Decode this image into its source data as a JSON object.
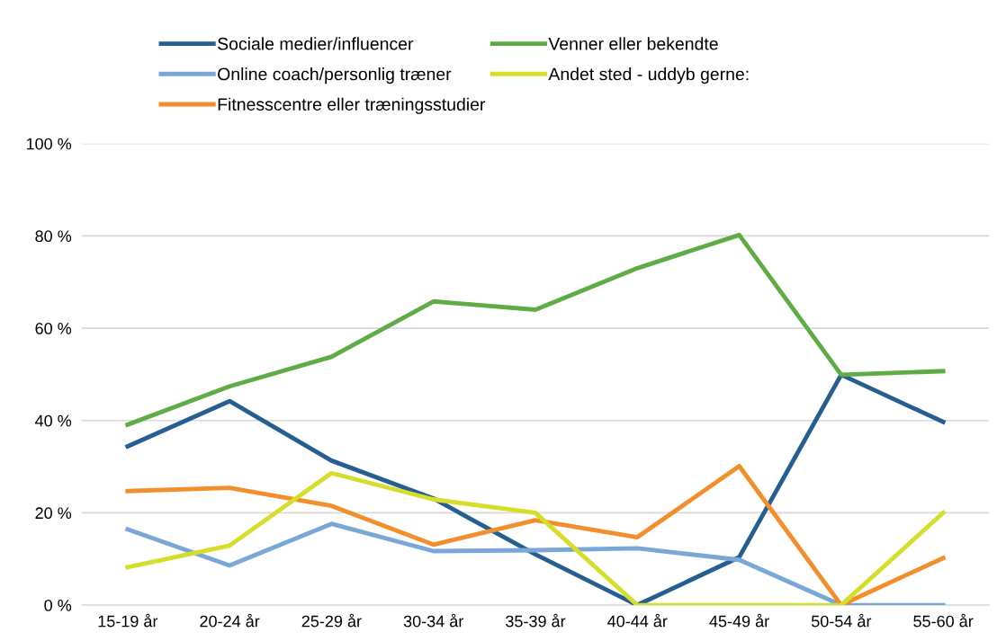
{
  "chart_data": {
    "type": "line",
    "categories": [
      "15-19 år",
      "20-24 år",
      "25-29 år",
      "30-34 år",
      "35-39 år",
      "40-44 år",
      "45-49 år",
      "50-54 år",
      "55-60 år"
    ],
    "series": [
      {
        "name": "Sociale medier/influencer",
        "color": "#255e91",
        "values": [
          34.4,
          44.2,
          31.3,
          23.1,
          11,
          0,
          10.4,
          49.9,
          39.7
        ]
      },
      {
        "name": "Online coach/personlig træner",
        "color": "#78a7d8",
        "values": [
          16.4,
          8.6,
          17.6,
          11.7,
          11.9,
          12.3,
          9.8,
          0,
          0
        ]
      },
      {
        "name": "Fitnesscentre eller træningsstudier",
        "color": "#f28e2b",
        "values": [
          24.7,
          25.4,
          21.5,
          13.1,
          18.4,
          14.7,
          30.1,
          0,
          10.2
        ]
      },
      {
        "name": "Venner eller bekendte",
        "color": "#5fac46",
        "values": [
          39.1,
          47.4,
          53.8,
          65.8,
          64,
          73,
          80.2,
          49.9,
          50.7
        ]
      },
      {
        "name": "Andet sted - uddyb gerne:",
        "color": "#d5df2a",
        "values": [
          8.2,
          12.9,
          28.6,
          22.9,
          20,
          0,
          0,
          0,
          20
        ]
      }
    ],
    "ylim": [
      0,
      100
    ],
    "yticks": [
      {
        "value": 0,
        "label": "0 %"
      },
      {
        "value": 20,
        "label": "20 %"
      },
      {
        "value": 40,
        "label": "40 %"
      },
      {
        "value": 60,
        "label": "60 %"
      },
      {
        "value": 80,
        "label": "80 %"
      },
      {
        "value": 100,
        "label": "100 %"
      }
    ],
    "grid": "y",
    "legend": "top",
    "line_style": "solid",
    "marker": "none"
  }
}
